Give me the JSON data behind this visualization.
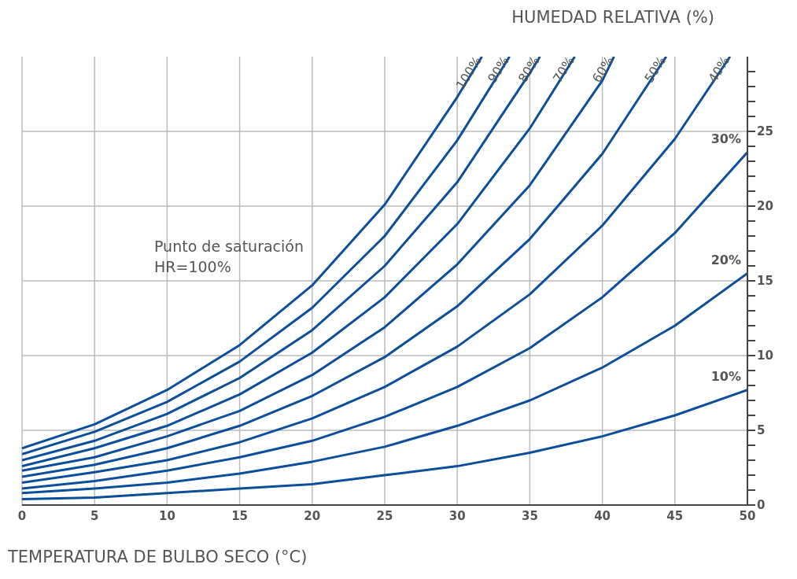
{
  "chart_data": {
    "type": "line",
    "title": "HUMEDAD RELATIVA (%)",
    "xlabel": "TEMPERATURA DE BULBO SECO (°C)",
    "annotations": [
      "Punto de saturación\nHR=100%"
    ],
    "series": [
      {
        "name": "100%",
        "color": "#0b4f9c",
        "x": [
          0,
          5,
          10,
          15,
          20,
          25,
          30,
          31.7
        ],
        "values": [
          3.8,
          5.4,
          7.7,
          10.7,
          14.7,
          20.1,
          27.3,
          30
        ]
      },
      {
        "name": "90%",
        "color": "#0b4f9c",
        "x": [
          0,
          5,
          10,
          15,
          20,
          25,
          30,
          33.6
        ],
        "values": [
          3.4,
          4.9,
          6.9,
          9.6,
          13.2,
          18.0,
          24.4,
          30
        ]
      },
      {
        "name": "80%",
        "color": "#0b4f9c",
        "x": [
          0,
          5,
          10,
          15,
          20,
          25,
          30,
          35,
          35.7
        ],
        "values": [
          3.0,
          4.3,
          6.1,
          8.5,
          11.7,
          16.0,
          21.6,
          28.9,
          30
        ]
      },
      {
        "name": "70%",
        "color": "#0b4f9c",
        "x": [
          0,
          5,
          10,
          15,
          20,
          25,
          30,
          35,
          38.1
        ],
        "values": [
          2.6,
          3.8,
          5.3,
          7.4,
          10.2,
          13.9,
          18.8,
          25.2,
          30
        ]
      },
      {
        "name": "60%",
        "color": "#0b4f9c",
        "x": [
          0,
          5,
          10,
          15,
          20,
          25,
          30,
          35,
          40,
          40.8
        ],
        "values": [
          2.3,
          3.2,
          4.6,
          6.3,
          8.7,
          11.9,
          16.1,
          21.4,
          28.4,
          30
        ]
      },
      {
        "name": "50%",
        "color": "#0b4f9c",
        "x": [
          0,
          5,
          10,
          15,
          20,
          25,
          30,
          35,
          40,
          44.4
        ],
        "values": [
          1.9,
          2.7,
          3.8,
          5.3,
          7.3,
          9.9,
          13.3,
          17.8,
          23.5,
          30
        ]
      },
      {
        "name": "40%",
        "color": "#0b4f9c",
        "x": [
          0,
          5,
          10,
          15,
          20,
          25,
          30,
          35,
          40,
          45,
          48.8
        ],
        "values": [
          1.5,
          2.2,
          3.0,
          4.2,
          5.8,
          7.9,
          10.6,
          14.1,
          18.7,
          24.5,
          30
        ]
      },
      {
        "name": "30%",
        "color": "#0b4f9c",
        "x": [
          0,
          5,
          10,
          15,
          20,
          25,
          30,
          35,
          40,
          45,
          50
        ],
        "values": [
          1.1,
          1.6,
          2.3,
          3.2,
          4.3,
          5.9,
          7.9,
          10.5,
          13.9,
          18.2,
          23.6
        ]
      },
      {
        "name": "20%",
        "color": "#0b4f9c",
        "x": [
          0,
          5,
          10,
          15,
          20,
          25,
          30,
          35,
          40,
          45,
          50
        ],
        "values": [
          0.8,
          1.1,
          1.5,
          2.1,
          2.9,
          3.9,
          5.3,
          7.0,
          9.2,
          12.0,
          15.5
        ]
      },
      {
        "name": "10%",
        "color": "#0b4f9c",
        "x": [
          0,
          5,
          10,
          15,
          20,
          25,
          30,
          35,
          40,
          45,
          50
        ],
        "values": [
          0.4,
          0.5,
          0.8,
          1.1,
          1.4,
          2.0,
          2.6,
          3.5,
          4.6,
          6.0,
          7.7
        ]
      }
    ],
    "xlim": [
      0,
      50
    ],
    "xticks": [
      0,
      5,
      10,
      15,
      20,
      25,
      30,
      35,
      40,
      45,
      50
    ],
    "ylim": [
      0,
      30
    ],
    "yticks": [
      0,
      {
        "value": 1,
        "label": null
      },
      {
        "value": 2,
        "label": null
      },
      {
        "value": 3,
        "label": null
      },
      {
        "value": 4,
        "label": null
      },
      5,
      {
        "value": 6,
        "label": null
      },
      {
        "value": 7,
        "label": null
      },
      {
        "value": 8,
        "label": null
      },
      {
        "value": 9,
        "label": null
      },
      10,
      {
        "value": 11,
        "label": null
      },
      {
        "value": 12,
        "label": null
      },
      {
        "value": 13,
        "label": null
      },
      {
        "value": 14,
        "label": null
      },
      15,
      {
        "value": 16,
        "label": null
      },
      {
        "value": 17,
        "label": null
      },
      {
        "value": 18,
        "label": null
      },
      {
        "value": 19,
        "label": null
      },
      20,
      {
        "value": 21,
        "label": null
      },
      {
        "value": 22,
        "label": null
      },
      {
        "value": 23,
        "label": null
      },
      {
        "value": 24,
        "label": null
      },
      25,
      {
        "value": 26,
        "label": null
      },
      {
        "value": 27,
        "label": null
      },
      {
        "value": 28,
        "label": null
      },
      {
        "value": 29,
        "label": null
      }
    ],
    "grid": true,
    "marker": "none",
    "line_style": "solid"
  }
}
